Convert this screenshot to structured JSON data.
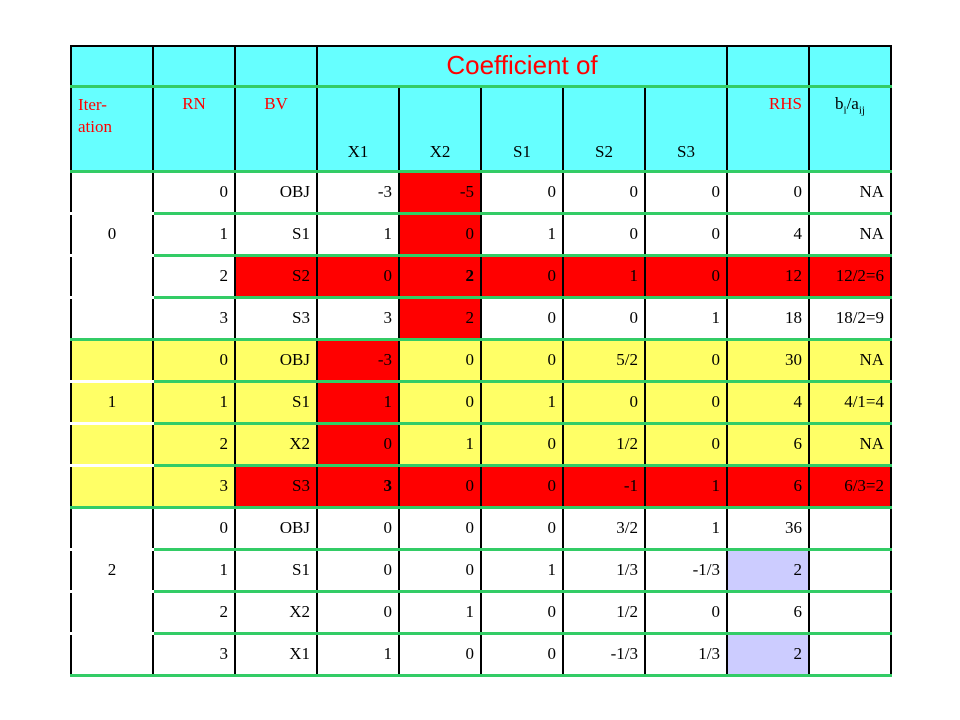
{
  "header": {
    "title": "Coefficient of",
    "iteration_label": "Iter-\nation",
    "rn": "RN",
    "bv": "BV",
    "vars": [
      "X1",
      "X2",
      "S1",
      "S2",
      "S3"
    ],
    "rhs": "RHS",
    "ratio_main": "b",
    "ratio_sub1": "i",
    "ratio_mid": "/a",
    "ratio_sub2": "ij"
  },
  "iterations": [
    {
      "label": "0",
      "rows": [
        {
          "rn": "0",
          "bv": "OBJ",
          "x1": "-3",
          "x2": "-5",
          "s1": "0",
          "s2": "0",
          "s3": "0",
          "rhs": "0",
          "ratio": "NA"
        },
        {
          "rn": "1",
          "bv": "S1",
          "x1": "1",
          "x2": "0",
          "s1": "1",
          "s2": "0",
          "s3": "0",
          "rhs": "4",
          "ratio": "NA"
        },
        {
          "rn": "2",
          "bv": "S2",
          "x1": "0",
          "x2": "2",
          "s1": "0",
          "s2": "1",
          "s3": "0",
          "rhs": "12",
          "ratio": "12/2=6"
        },
        {
          "rn": "3",
          "bv": "S3",
          "x1": "3",
          "x2": "2",
          "s1": "0",
          "s2": "0",
          "s3": "1",
          "rhs": "18",
          "ratio": "18/2=9"
        }
      ]
    },
    {
      "label": "1",
      "rows": [
        {
          "rn": "0",
          "bv": "OBJ",
          "x1": "-3",
          "x2": "0",
          "s1": "0",
          "s2": "5/2",
          "s3": "0",
          "rhs": "30",
          "ratio": "NA"
        },
        {
          "rn": "1",
          "bv": "S1",
          "x1": "1",
          "x2": "0",
          "s1": "1",
          "s2": "0",
          "s3": "0",
          "rhs": "4",
          "ratio": "4/1=4"
        },
        {
          "rn": "2",
          "bv": "X2",
          "x1": "0",
          "x2": "1",
          "s1": "0",
          "s2": "1/2",
          "s3": "0",
          "rhs": "6",
          "ratio": "NA"
        },
        {
          "rn": "3",
          "bv": "S3",
          "x1": "3",
          "x2": "0",
          "s1": "0",
          "s2": "-1",
          "s3": "1",
          "rhs": "6",
          "ratio": "6/3=2"
        }
      ]
    },
    {
      "label": "2",
      "rows": [
        {
          "rn": "0",
          "bv": "OBJ",
          "x1": "0",
          "x2": "0",
          "s1": "0",
          "s2": "3/2",
          "s3": "1",
          "rhs": "36",
          "ratio": ""
        },
        {
          "rn": "1",
          "bv": "S1",
          "x1": "0",
          "x2": "0",
          "s1": "1",
          "s2": "1/3",
          "s3": "-1/3",
          "rhs": "2",
          "ratio": ""
        },
        {
          "rn": "2",
          "bv": "X2",
          "x1": "0",
          "x2": "1",
          "s1": "0",
          "s2": "1/2",
          "s3": "0",
          "rhs": "6",
          "ratio": ""
        },
        {
          "rn": "3",
          "bv": "X1",
          "x1": "1",
          "x2": "0",
          "s1": "0",
          "s2": "-1/3",
          "s3": "1/3",
          "rhs": "2",
          "ratio": ""
        }
      ]
    }
  ],
  "colors": {
    "header_bg": "#66ffff",
    "yellow_bg": "#ffff66",
    "pivot_red": "#ff0000",
    "rhs_highlight": "#ccccff",
    "row_divider": "#33cc66",
    "title_text": "#ff0000"
  }
}
